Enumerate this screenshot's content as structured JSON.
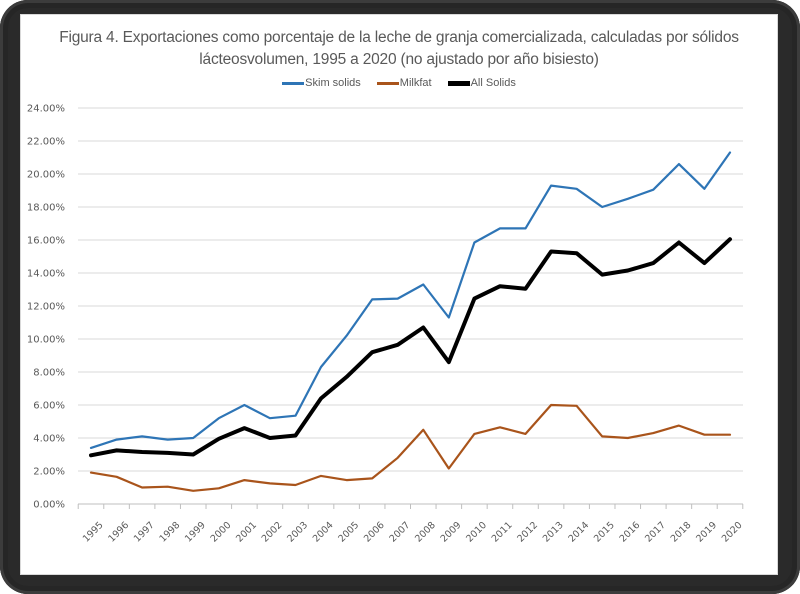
{
  "chart_data": {
    "type": "line",
    "title": "Figura 4. Exportaciones como porcentaje de la leche de granja comercializada, calculadas por sólidos lácteosvolumen, 1995 a 2020 (no ajustado por año bisiesto)",
    "title_lines": [
      "Figura 4. Exportaciones como porcentaje de la leche de granja comercializada, calculadas por sólidos",
      "lácteosvolumen, 1995 a 2020 (no ajustado por año bisiesto)"
    ],
    "xlabel": "",
    "ylabel": "",
    "x": [
      1995,
      1996,
      1997,
      1998,
      1999,
      2000,
      2001,
      2002,
      2003,
      2004,
      2005,
      2006,
      2007,
      2008,
      2009,
      2010,
      2011,
      2012,
      2013,
      2014,
      2015,
      2016,
      2017,
      2018,
      2019,
      2020
    ],
    "x_tick_labels": [
      "1995",
      "1996",
      "1997",
      "1998",
      "1999",
      "2000",
      "2001",
      "2002",
      "2003",
      "2004",
      "2005",
      "2006",
      "2007",
      "2008",
      "2009",
      "2010",
      "2011",
      "2012",
      "2013",
      "2014",
      "2015",
      "2016",
      "2017",
      "2018",
      "2019",
      "2020"
    ],
    "ylim": [
      0,
      24
    ],
    "y_ticks": [
      0,
      2,
      4,
      6,
      8,
      10,
      12,
      14,
      16,
      18,
      20,
      22,
      24
    ],
    "y_tick_labels": [
      "0.00%",
      "2.00%",
      "4.00%",
      "6.00%",
      "8.00%",
      "10.00%",
      "12.00%",
      "14.00%",
      "16.00%",
      "18.00%",
      "20.00%",
      "22.00%",
      "24.00%"
    ],
    "grid": true,
    "legend_position": "top-center",
    "series": [
      {
        "name": "Skim solids",
        "color": "#2e75b6",
        "values": [
          3.4,
          3.9,
          4.1,
          3.9,
          4.0,
          5.2,
          6.0,
          5.2,
          5.35,
          8.3,
          10.2,
          12.4,
          12.45,
          13.3,
          11.3,
          15.85,
          16.7,
          16.7,
          19.3,
          19.1,
          18.0,
          18.5,
          19.05,
          20.6,
          19.1,
          21.3
        ]
      },
      {
        "name": "Milkfat",
        "color": "#a9541b",
        "values": [
          1.9,
          1.65,
          1.0,
          1.05,
          0.8,
          0.95,
          1.45,
          1.25,
          1.15,
          1.7,
          1.45,
          1.55,
          2.8,
          4.5,
          2.15,
          4.25,
          4.65,
          4.25,
          6.0,
          5.95,
          4.1,
          4.0,
          4.3,
          4.75,
          4.2,
          4.2
        ]
      },
      {
        "name": "All Solids",
        "color": "#000000",
        "values": [
          2.95,
          3.25,
          3.15,
          3.1,
          3.0,
          3.95,
          4.6,
          4.0,
          4.15,
          6.4,
          7.7,
          9.2,
          9.65,
          10.7,
          8.6,
          12.45,
          13.2,
          13.05,
          15.3,
          15.2,
          13.9,
          14.15,
          14.6,
          15.85,
          14.6,
          16.05
        ]
      }
    ]
  }
}
